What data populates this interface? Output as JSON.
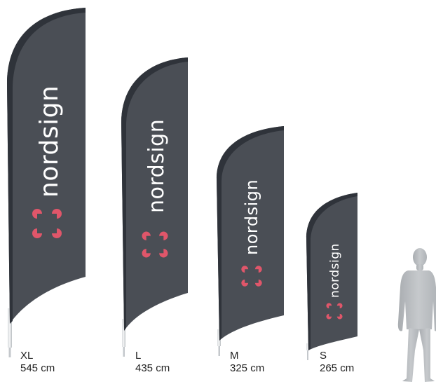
{
  "brand": {
    "name": "nordsign",
    "logo_icon": "corner-brackets-logo",
    "logo_color": "#e0566a",
    "flag_color": "#4a4e55",
    "flag_edge_color": "#2f333a"
  },
  "flags": [
    {
      "size": "XL",
      "height": "545 cm"
    },
    {
      "size": "L",
      "height": "435 cm"
    },
    {
      "size": "M",
      "height": "325 cm"
    },
    {
      "size": "S",
      "height": "265 cm"
    }
  ],
  "figure": {
    "icon": "person-silhouette-icon",
    "color": "#b9bcbf"
  }
}
